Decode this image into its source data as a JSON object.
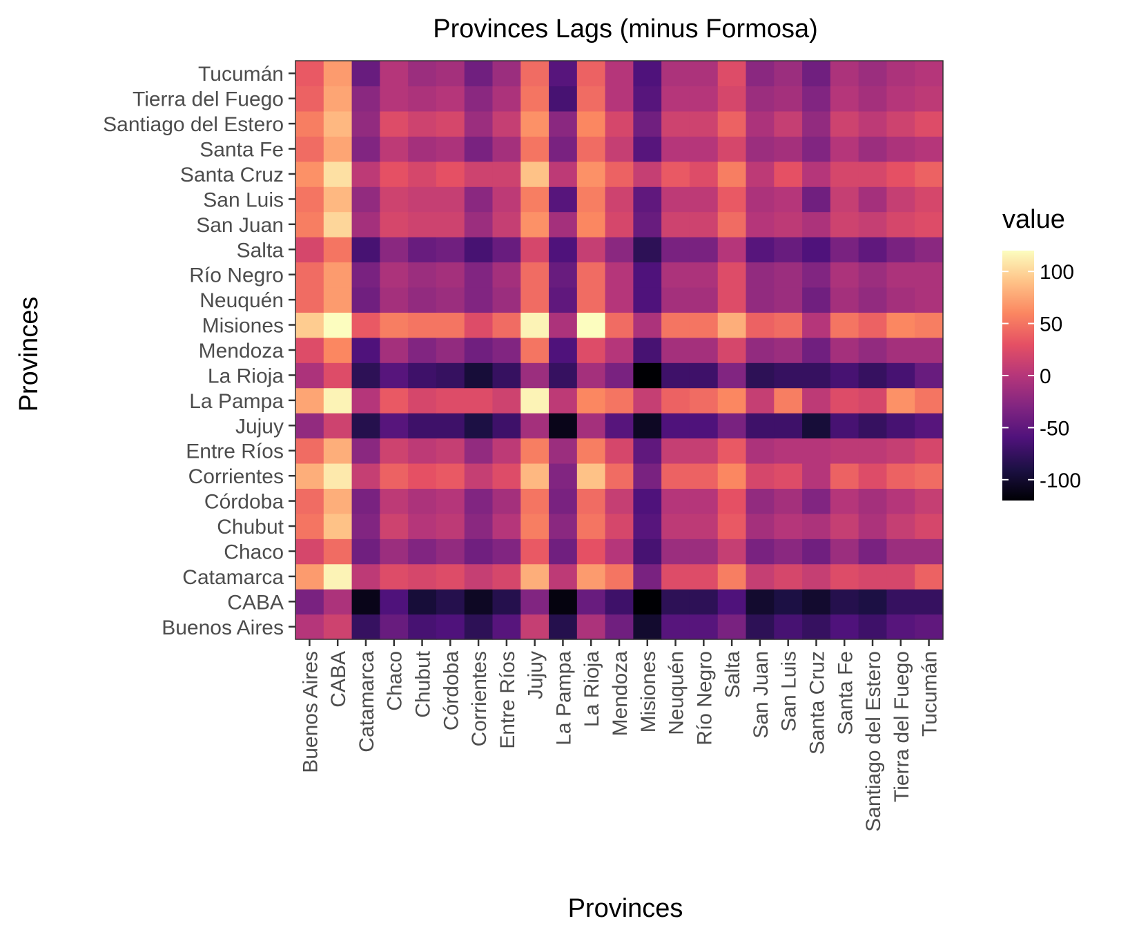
{
  "chart_data": {
    "type": "heatmap",
    "title": "Provinces Lags (minus Formosa)",
    "xlabel": "Provinces",
    "ylabel": "Provinces",
    "categories": [
      "Buenos Aires",
      "CABA",
      "Catamarca",
      "Chaco",
      "Chubut",
      "Córdoba",
      "Corrientes",
      "Entre Ríos",
      "Jujuy",
      "La Pampa",
      "La Rioja",
      "Mendoza",
      "Misiones",
      "Neuquén",
      "Río Negro",
      "Salta",
      "San Juan",
      "San Luis",
      "Santa Cruz",
      "Santa Fe",
      "Santiago del Estero",
      "Tierra del Fuego",
      "Tucumán"
    ],
    "color_scale": {
      "name": "magma",
      "limits": [
        -120,
        120
      ],
      "legend_title": "value",
      "legend_breaks": [
        100,
        50,
        0,
        -50,
        -100
      ],
      "legend_labels": [
        "100",
        "50",
        "0",
        "-50",
        "-100"
      ],
      "stops": [
        "#000004",
        "#1c1044",
        "#4f127b",
        "#812581",
        "#b5367a",
        "#e55064",
        "#fb8761",
        "#fec287",
        "#fcfdbf"
      ]
    },
    "legend_placement": "right",
    "grid": false,
    "rows": [
      {
        "name": "Buenos Aires",
        "values": [
          0,
          15,
          -75,
          -45,
          -65,
          -60,
          -80,
          -55,
          10,
          -85,
          -5,
          -40,
          -100,
          -55,
          -55,
          -35,
          -80,
          -65,
          -75,
          -60,
          -70,
          -55,
          -50
        ]
      },
      {
        "name": "CABA",
        "values": [
          -35,
          -5,
          -110,
          -60,
          -95,
          -85,
          -105,
          -85,
          -30,
          -115,
          -45,
          -70,
          -120,
          -80,
          -80,
          -60,
          -100,
          -90,
          -100,
          -85,
          -90,
          -75,
          -75
        ]
      },
      {
        "name": "Catamarca",
        "values": [
          70,
          115,
          5,
          25,
          20,
          25,
          10,
          20,
          80,
          5,
          70,
          50,
          -35,
          25,
          25,
          55,
          10,
          20,
          10,
          25,
          20,
          20,
          40
        ]
      },
      {
        "name": "Chaco",
        "values": [
          20,
          45,
          -40,
          -15,
          -30,
          -20,
          -40,
          -30,
          35,
          -40,
          30,
          0,
          -65,
          -15,
          -15,
          10,
          -35,
          -25,
          -40,
          -15,
          -35,
          -15,
          -15
        ]
      },
      {
        "name": "Chubut",
        "values": [
          50,
          90,
          -30,
          15,
          0,
          5,
          -25,
          0,
          55,
          -25,
          50,
          20,
          -55,
          5,
          5,
          35,
          -10,
          0,
          -5,
          10,
          -5,
          10,
          20
        ]
      },
      {
        "name": "Córdoba",
        "values": [
          45,
          80,
          -35,
          5,
          -5,
          0,
          -30,
          -10,
          50,
          -35,
          45,
          10,
          -60,
          0,
          0,
          30,
          -20,
          -10,
          -30,
          0,
          -10,
          0,
          10
        ]
      },
      {
        "name": "Corrientes",
        "values": [
          80,
          110,
          10,
          40,
          30,
          35,
          10,
          25,
          85,
          -30,
          90,
          45,
          -35,
          40,
          40,
          60,
          20,
          25,
          0,
          40,
          25,
          40,
          45
        ]
      },
      {
        "name": "Entre Ríos",
        "values": [
          45,
          80,
          -25,
          15,
          5,
          10,
          -20,
          5,
          55,
          -15,
          55,
          20,
          -50,
          10,
          10,
          35,
          -5,
          0,
          0,
          5,
          5,
          10,
          20
        ]
      },
      {
        "name": "Jujuy",
        "values": [
          -20,
          15,
          -85,
          -55,
          -70,
          -70,
          -90,
          -70,
          -10,
          -110,
          -10,
          -55,
          -105,
          -60,
          -60,
          -35,
          -70,
          -70,
          -95,
          -65,
          -75,
          -65,
          -55
        ]
      },
      {
        "name": "La Pampa",
        "values": [
          75,
          115,
          0,
          35,
          20,
          25,
          25,
          15,
          115,
          5,
          60,
          50,
          10,
          40,
          45,
          60,
          10,
          55,
          5,
          25,
          20,
          65,
          50
        ]
      },
      {
        "name": "La Rioja",
        "values": [
          -5,
          25,
          -80,
          -55,
          -70,
          -75,
          -95,
          -75,
          -15,
          -75,
          -10,
          -35,
          -120,
          -70,
          -70,
          -30,
          -80,
          -75,
          -75,
          -65,
          -75,
          -65,
          -45
        ]
      },
      {
        "name": "Mendoza",
        "values": [
          25,
          60,
          -60,
          -10,
          -30,
          -20,
          -40,
          -30,
          50,
          -60,
          25,
          0,
          -65,
          -10,
          -10,
          20,
          -20,
          -15,
          -40,
          -10,
          -20,
          -10,
          -10
        ]
      },
      {
        "name": "Misiones",
        "values": [
          95,
          120,
          35,
          55,
          50,
          50,
          25,
          45,
          115,
          -5,
          120,
          45,
          -5,
          50,
          50,
          80,
          40,
          45,
          0,
          50,
          40,
          60,
          55
        ]
      },
      {
        "name": "Neuquén",
        "values": [
          45,
          70,
          -40,
          -10,
          -20,
          -15,
          -30,
          -15,
          45,
          -50,
          45,
          0,
          -60,
          -10,
          -10,
          25,
          -20,
          -15,
          -40,
          -10,
          -20,
          -10,
          -5
        ]
      },
      {
        "name": "Río Negro",
        "values": [
          45,
          70,
          -35,
          -5,
          -15,
          -10,
          -30,
          -10,
          45,
          -45,
          45,
          0,
          -60,
          -5,
          -5,
          25,
          -20,
          -15,
          -30,
          -5,
          -15,
          -5,
          -5
        ]
      },
      {
        "name": "Salta",
        "values": [
          20,
          50,
          -65,
          -25,
          -45,
          -40,
          -65,
          -45,
          20,
          -60,
          10,
          -25,
          -80,
          -35,
          -35,
          0,
          -55,
          -45,
          -60,
          -35,
          -50,
          -35,
          -25
        ]
      },
      {
        "name": "San Juan",
        "values": [
          55,
          100,
          -10,
          20,
          15,
          15,
          -15,
          10,
          65,
          -10,
          60,
          20,
          -45,
          15,
          15,
          45,
          0,
          5,
          -5,
          15,
          10,
          20,
          25
        ]
      },
      {
        "name": "San Luis",
        "values": [
          50,
          85,
          -20,
          15,
          10,
          10,
          -25,
          5,
          55,
          -55,
          55,
          15,
          -50,
          5,
          5,
          35,
          -5,
          0,
          -40,
          10,
          -10,
          10,
          20
        ]
      },
      {
        "name": "Santa Cruz",
        "values": [
          65,
          105,
          5,
          30,
          20,
          30,
          15,
          15,
          90,
          5,
          65,
          40,
          10,
          35,
          25,
          55,
          5,
          30,
          0,
          20,
          20,
          30,
          40
        ]
      },
      {
        "name": "Santa Fe",
        "values": [
          45,
          75,
          -30,
          5,
          -10,
          -5,
          -35,
          -10,
          50,
          -35,
          45,
          10,
          -55,
          0,
          0,
          20,
          -15,
          -10,
          -30,
          0,
          -15,
          -5,
          0
        ]
      },
      {
        "name": "Santiago del Estero",
        "values": [
          55,
          85,
          -20,
          25,
          15,
          20,
          -15,
          10,
          65,
          -25,
          60,
          20,
          -40,
          15,
          15,
          40,
          -5,
          10,
          -20,
          15,
          5,
          15,
          25
        ]
      },
      {
        "name": "Tierra del Fuego",
        "values": [
          40,
          75,
          -25,
          0,
          -5,
          0,
          -25,
          -5,
          50,
          -65,
          45,
          0,
          -55,
          0,
          0,
          20,
          -15,
          -10,
          -30,
          0,
          -10,
          0,
          5
        ]
      },
      {
        "name": "Tucumán",
        "values": [
          35,
          70,
          -45,
          0,
          -15,
          -10,
          -40,
          -15,
          45,
          -55,
          40,
          0,
          -60,
          -5,
          -5,
          25,
          -25,
          -15,
          -40,
          -5,
          -15,
          -5,
          0
        ]
      }
    ]
  }
}
